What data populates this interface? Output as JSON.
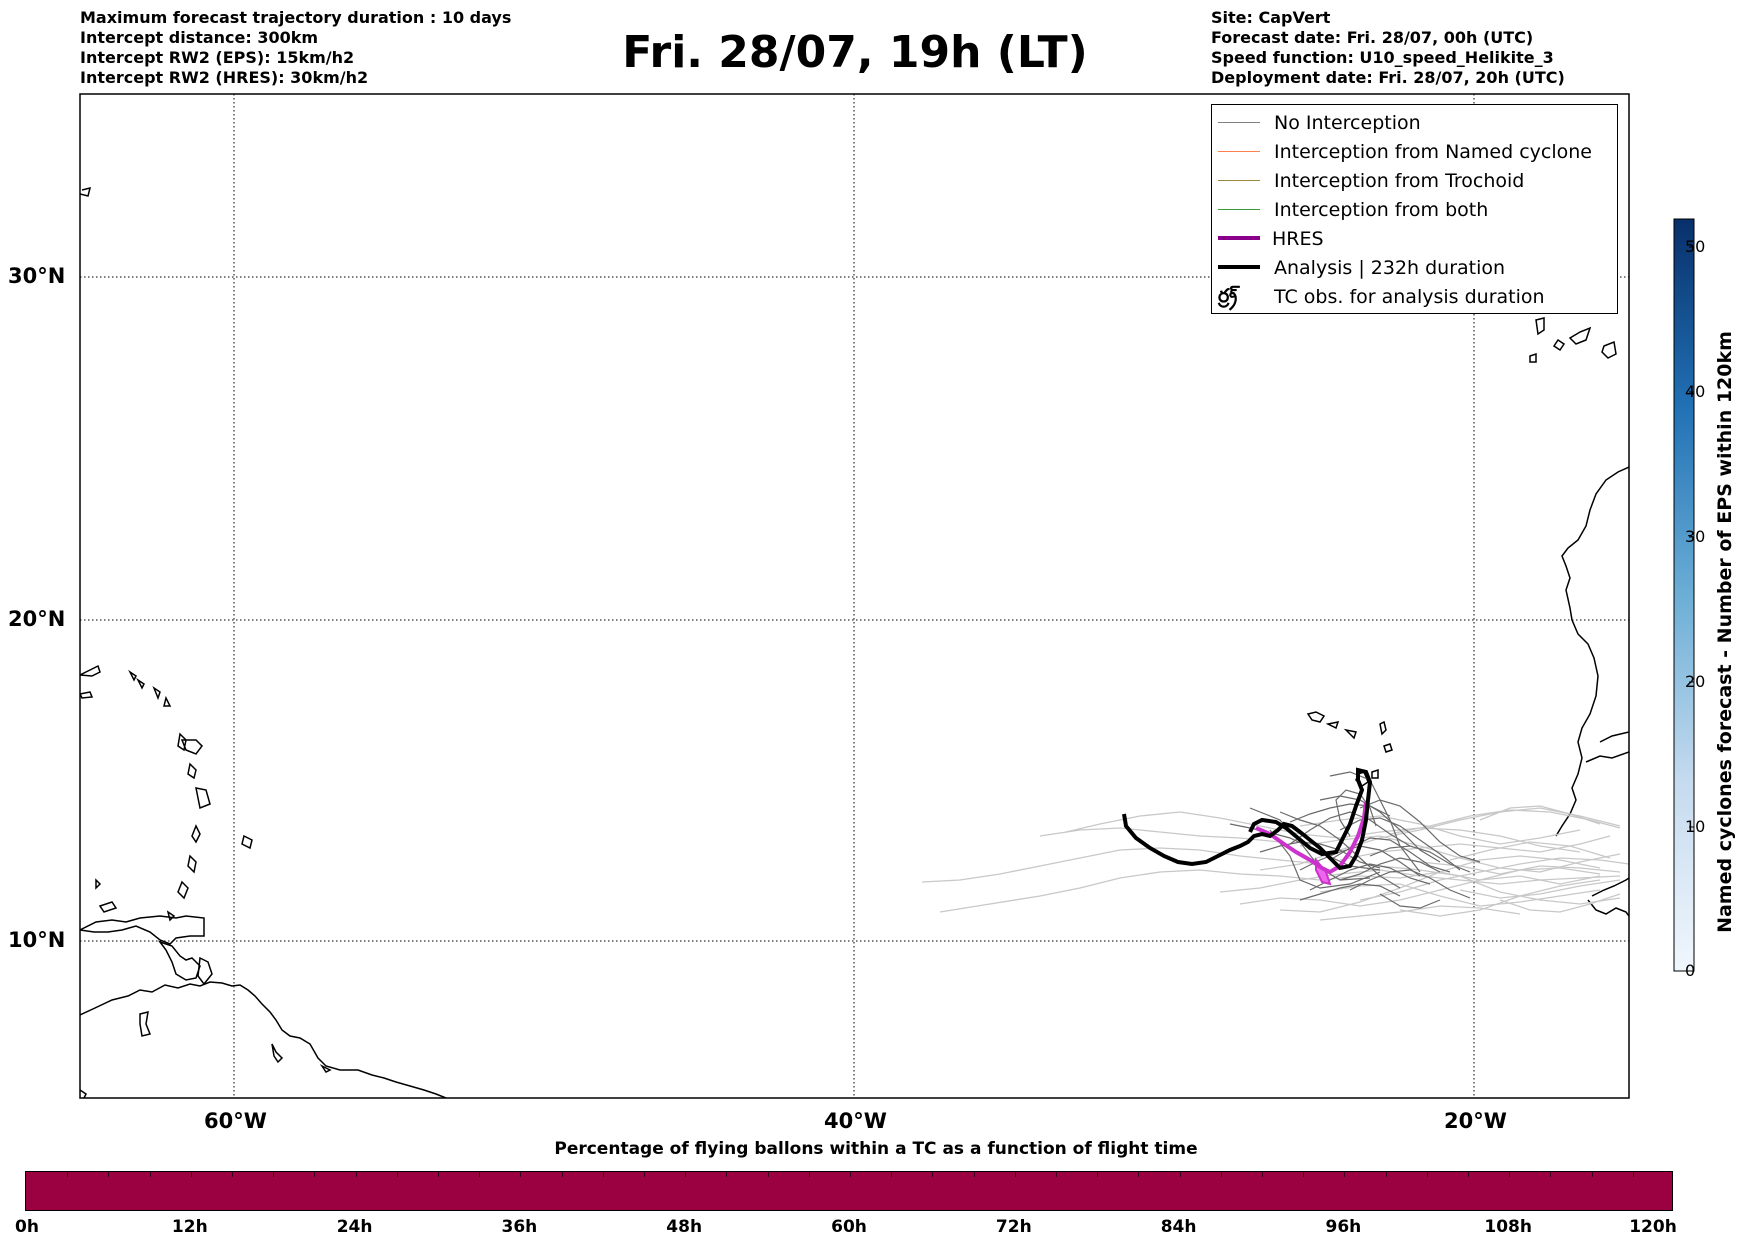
{
  "header_left": [
    "Maximum forecast trajectory duration : 10 days",
    "Intercept distance: 300km",
    "Intercept RW2 (EPS):  15km/h2",
    "Intercept RW2 (HRES): 30km/h2"
  ],
  "title": "Fri. 28/07, 19h (LT)",
  "header_right": [
    "Site: CapVert",
    "Forecast date: Fri. 28/07, 00h (UTC)",
    "Speed function: U10_speed_Helikite_3",
    "Deployment date: Fri. 28/07, 20h (UTC)"
  ],
  "map": {
    "lat_labels": [
      "30°N",
      "20°N",
      "10°N"
    ],
    "lon_labels": [
      "60°W",
      "40°W",
      "20°W"
    ]
  },
  "legend": [
    {
      "label": "No Interception",
      "color": "#808080",
      "width": 1
    },
    {
      "label": "Interception from Named cyclone",
      "color": "#ff7f50",
      "width": 1.5
    },
    {
      "label": "Interception from Trochoid",
      "color": "#9b8a3a",
      "width": 1.5
    },
    {
      "label": "Interception from both",
      "color": "#3a9a3a",
      "width": 1.5
    },
    {
      "label": "HRES",
      "color": "#8b008b",
      "width": 4
    },
    {
      "label": "Analysis | 232h duration",
      "color": "#000000",
      "width": 4
    }
  ],
  "legend_tc": {
    "symbol": "ర్ర్ర్",
    "label": "TC obs. for analysis duration"
  },
  "colorbar_vertical": {
    "label": "Named cyclones forecast - Number of EPS within 120km",
    "ticks": [
      "50",
      "40",
      "30",
      "20",
      "10",
      "0"
    ],
    "color_low": "#f0f6fd",
    "color_high": "#08306b"
  },
  "colorbar_horizontal": {
    "title": "Percentage of flying ballons within a TC as a function of flight time",
    "ticks": [
      "0h",
      "12h",
      "24h",
      "36h",
      "48h",
      "60h",
      "72h",
      "84h",
      "96h",
      "108h",
      "120h"
    ],
    "color": "#9b0040"
  },
  "colors": {
    "hres": "#cc33cc",
    "analysis": "#000000",
    "eps_dark": "#606060",
    "eps_light": "#c8c8c8"
  }
}
